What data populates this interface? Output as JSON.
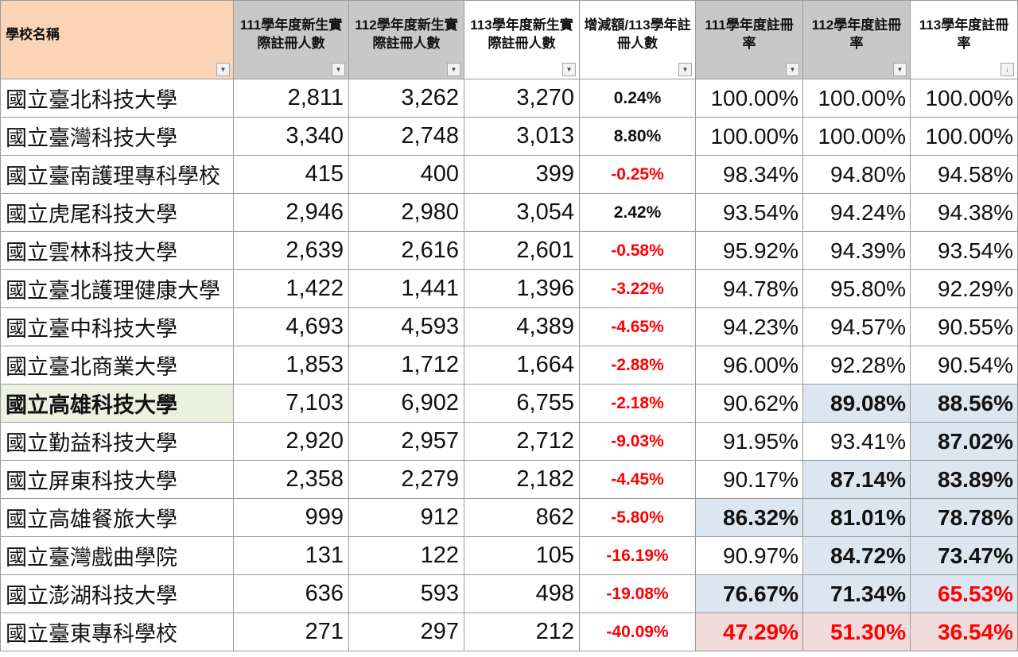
{
  "headers": [
    {
      "label": "學校名稱",
      "filter_icon": "▼"
    },
    {
      "label": "111學年度新生實際註冊人數",
      "filter_icon": "▼"
    },
    {
      "label": "112學年度新生實際註冊人數",
      "filter_icon": "▼"
    },
    {
      "label": "113學年度新生實際註冊人數",
      "filter_icon": "▼"
    },
    {
      "label": "增減額/113學年註冊人數",
      "filter_icon": "▼"
    },
    {
      "label": "111學年度註冊率",
      "filter_icon": "▼"
    },
    {
      "label": "112學年度註冊率",
      "filter_icon": "▼"
    },
    {
      "label": "113學年度註冊率",
      "filter_icon": "↓"
    }
  ],
  "highlight_colors": {
    "header_school": "#fbd4b6",
    "header_grey": "#c8c8c8",
    "row_highlight_name": "#ebf1de",
    "cell_blue": "#dce6f1",
    "cell_red": "#f2dcdb",
    "negative_text": "#ff0000"
  },
  "rows": [
    {
      "name": "國立臺北科技大學",
      "r111": "2,811",
      "r112": "3,262",
      "r113": "3,270",
      "delta": "0.24%",
      "rate111": "100.00%",
      "rate112": "100.00%",
      "rate113": "100.00%"
    },
    {
      "name": "國立臺灣科技大學",
      "r111": "3,340",
      "r112": "2,748",
      "r113": "3,013",
      "delta": "8.80%",
      "rate111": "100.00%",
      "rate112": "100.00%",
      "rate113": "100.00%"
    },
    {
      "name": "國立臺南護理專科學校",
      "r111": "415",
      "r112": "400",
      "r113": "399",
      "delta": "-0.25%",
      "rate111": "98.34%",
      "rate112": "94.80%",
      "rate113": "94.58%"
    },
    {
      "name": "國立虎尾科技大學",
      "r111": "2,946",
      "r112": "2,980",
      "r113": "3,054",
      "delta": "2.42%",
      "rate111": "93.54%",
      "rate112": "94.24%",
      "rate113": "94.38%"
    },
    {
      "name": "國立雲林科技大學",
      "r111": "2,639",
      "r112": "2,616",
      "r113": "2,601",
      "delta": "-0.58%",
      "rate111": "95.92%",
      "rate112": "94.39%",
      "rate113": "93.54%"
    },
    {
      "name": "國立臺北護理健康大學",
      "r111": "1,422",
      "r112": "1,441",
      "r113": "1,396",
      "delta": "-3.22%",
      "rate111": "94.78%",
      "rate112": "95.80%",
      "rate113": "92.29%"
    },
    {
      "name": "國立臺中科技大學",
      "r111": "4,693",
      "r112": "4,593",
      "r113": "4,389",
      "delta": "-4.65%",
      "rate111": "94.23%",
      "rate112": "94.57%",
      "rate113": "90.55%"
    },
    {
      "name": "國立臺北商業大學",
      "r111": "1,853",
      "r112": "1,712",
      "r113": "1,664",
      "delta": "-2.88%",
      "rate111": "96.00%",
      "rate112": "92.28%",
      "rate113": "90.54%"
    },
    {
      "name": "國立高雄科技大學",
      "r111": "7,103",
      "r112": "6,902",
      "r113": "6,755",
      "delta": "-2.18%",
      "rate111": "90.62%",
      "rate112": "89.08%",
      "rate113": "88.56%"
    },
    {
      "name": "國立勤益科技大學",
      "r111": "2,920",
      "r112": "2,957",
      "r113": "2,712",
      "delta": "-9.03%",
      "rate111": "91.95%",
      "rate112": "93.41%",
      "rate113": "87.02%"
    },
    {
      "name": "國立屏東科技大學",
      "r111": "2,358",
      "r112": "2,279",
      "r113": "2,182",
      "delta": "-4.45%",
      "rate111": "90.17%",
      "rate112": "87.14%",
      "rate113": "83.89%"
    },
    {
      "name": "國立高雄餐旅大學",
      "r111": "999",
      "r112": "912",
      "r113": "862",
      "delta": "-5.80%",
      "rate111": "86.32%",
      "rate112": "81.01%",
      "rate113": "78.78%"
    },
    {
      "name": "國立臺灣戲曲學院",
      "r111": "131",
      "r112": "122",
      "r113": "105",
      "delta": "-16.19%",
      "rate111": "90.97%",
      "rate112": "84.72%",
      "rate113": "73.47%"
    },
    {
      "name": "國立澎湖科技大學",
      "r111": "636",
      "r112": "593",
      "r113": "498",
      "delta": "-19.08%",
      "rate111": "76.67%",
      "rate112": "71.34%",
      "rate113": "65.53%"
    },
    {
      "name": "國立臺東專科學校",
      "r111": "271",
      "r112": "297",
      "r113": "212",
      "delta": "-40.09%",
      "rate111": "47.29%",
      "rate112": "51.30%",
      "rate113": "36.54%"
    }
  ]
}
